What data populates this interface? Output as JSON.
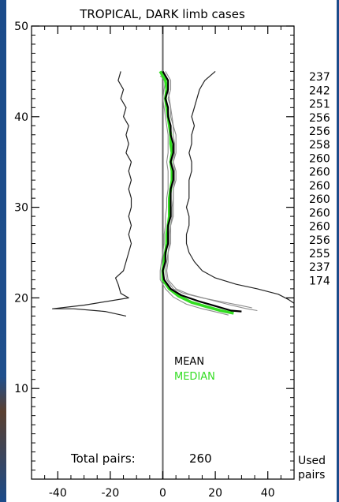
{
  "colors": {
    "frame": "#000000",
    "mean": "#000000",
    "median": "#33dd22",
    "spread": "#222222",
    "individual": "#8c8c8c",
    "zero_line": "#666666",
    "edge": "#1b4b8a"
  },
  "chart_data": {
    "type": "line",
    "title": "TROPICAL, DARK limb cases",
    "xlabel": "",
    "ylabel": "",
    "xlim": [
      -50,
      50
    ],
    "ylim": [
      0,
      50
    ],
    "x_ticks": [
      -40,
      -20,
      0,
      20,
      40
    ],
    "y_ticks": [
      10,
      20,
      30,
      40,
      50
    ],
    "grid": false,
    "legend_placement": "lower-center",
    "legend": {
      "mean_label": "MEAN",
      "median_label": "MEDIAN"
    },
    "total_pairs_label": "Total pairs:",
    "total_pairs_value": "260",
    "right_label_line1": "Used",
    "right_label_line2": "pairs",
    "used_pairs": [
      {
        "y": 44.5,
        "n": "237"
      },
      {
        "y": 43.0,
        "n": "242"
      },
      {
        "y": 41.5,
        "n": "251"
      },
      {
        "y": 40.0,
        "n": "256"
      },
      {
        "y": 38.5,
        "n": "256"
      },
      {
        "y": 37.0,
        "n": "258"
      },
      {
        "y": 35.5,
        "n": "260"
      },
      {
        "y": 34.0,
        "n": "260"
      },
      {
        "y": 32.5,
        "n": "260"
      },
      {
        "y": 31.0,
        "n": "260"
      },
      {
        "y": 29.5,
        "n": "260"
      },
      {
        "y": 28.0,
        "n": "260"
      },
      {
        "y": 26.5,
        "n": "256"
      },
      {
        "y": 25.0,
        "n": "255"
      },
      {
        "y": 23.5,
        "n": "237"
      },
      {
        "y": 22.0,
        "n": "174"
      }
    ],
    "series": [
      {
        "name": "MEAN",
        "role": "mean",
        "points": [
          [
            0,
            45
          ],
          [
            2,
            44
          ],
          [
            2,
            43
          ],
          [
            1,
            42
          ],
          [
            2,
            41
          ],
          [
            2,
            40
          ],
          [
            3,
            39
          ],
          [
            3,
            38
          ],
          [
            4,
            37
          ],
          [
            4,
            36
          ],
          [
            3,
            35
          ],
          [
            4,
            34
          ],
          [
            4,
            33
          ],
          [
            3,
            32
          ],
          [
            3,
            31
          ],
          [
            3,
            30
          ],
          [
            3,
            29
          ],
          [
            2,
            28
          ],
          [
            2,
            27
          ],
          [
            2,
            26
          ],
          [
            1,
            25
          ],
          [
            1,
            24
          ],
          [
            0,
            23
          ],
          [
            0.5,
            22
          ],
          [
            3,
            21
          ],
          [
            7,
            20.3
          ],
          [
            14,
            19.6
          ],
          [
            20,
            19.1
          ],
          [
            26,
            18.6
          ],
          [
            30,
            18.5
          ]
        ]
      },
      {
        "name": "MEDIAN",
        "role": "median",
        "points": [
          [
            -1,
            45
          ],
          [
            1,
            44
          ],
          [
            1.5,
            43
          ],
          [
            1,
            42
          ],
          [
            1.5,
            41
          ],
          [
            2,
            40
          ],
          [
            2.5,
            39
          ],
          [
            3,
            38
          ],
          [
            3,
            37
          ],
          [
            3.5,
            36
          ],
          [
            3,
            35
          ],
          [
            3.5,
            34
          ],
          [
            3.5,
            33
          ],
          [
            3,
            32
          ],
          [
            2.5,
            31
          ],
          [
            2.5,
            30
          ],
          [
            2.5,
            29
          ],
          [
            2,
            28
          ],
          [
            1.5,
            27
          ],
          [
            1.5,
            26
          ],
          [
            1,
            25
          ],
          [
            0.5,
            24
          ],
          [
            0,
            23
          ],
          [
            0,
            22
          ],
          [
            2.5,
            21
          ],
          [
            6,
            20.2
          ],
          [
            11,
            19.5
          ],
          [
            17,
            19.0
          ],
          [
            22,
            18.6
          ],
          [
            27,
            18.3
          ]
        ]
      },
      {
        "role": "spread",
        "points": [
          [
            -16,
            45
          ],
          [
            -17,
            44
          ],
          [
            -15,
            43
          ],
          [
            -16,
            42
          ],
          [
            -14,
            41
          ],
          [
            -15,
            40
          ],
          [
            -13,
            39
          ],
          [
            -14,
            38
          ],
          [
            -13,
            37
          ],
          [
            -14,
            36
          ],
          [
            -12,
            35
          ],
          [
            -13,
            34
          ],
          [
            -12,
            33
          ],
          [
            -13,
            32
          ],
          [
            -12,
            31
          ],
          [
            -12,
            30
          ],
          [
            -13,
            29
          ],
          [
            -12,
            28
          ],
          [
            -13,
            27
          ],
          [
            -12,
            26
          ],
          [
            -13,
            25
          ],
          [
            -14,
            24
          ],
          [
            -15,
            23
          ],
          [
            -18,
            22.2
          ],
          [
            -17,
            21.5
          ],
          [
            -16,
            20.5
          ],
          [
            -13,
            20.0
          ],
          [
            -30,
            19.2
          ],
          [
            -42,
            18.8
          ],
          [
            -34,
            18.8
          ],
          [
            -22,
            18.5
          ],
          [
            -14,
            18.0
          ]
        ]
      },
      {
        "role": "spread",
        "points": [
          [
            20,
            45
          ],
          [
            16,
            44
          ],
          [
            14,
            43
          ],
          [
            13,
            42
          ],
          [
            12,
            41
          ],
          [
            11,
            40
          ],
          [
            12,
            39
          ],
          [
            11,
            38
          ],
          [
            11,
            37
          ],
          [
            10,
            36
          ],
          [
            11,
            35
          ],
          [
            11,
            34
          ],
          [
            10,
            33
          ],
          [
            10,
            32
          ],
          [
            10,
            31
          ],
          [
            9,
            30
          ],
          [
            10,
            29
          ],
          [
            10,
            28
          ],
          [
            9,
            27
          ],
          [
            9,
            26
          ],
          [
            10,
            25
          ],
          [
            12,
            24
          ],
          [
            15,
            23
          ],
          [
            20,
            22.2
          ],
          [
            28,
            21.5
          ],
          [
            36,
            21.0
          ],
          [
            44,
            20.4
          ],
          [
            48,
            19.8
          ],
          [
            50,
            19.4
          ]
        ]
      },
      {
        "role": "individual",
        "points": [
          [
            1,
            45
          ],
          [
            3,
            44
          ],
          [
            3,
            43
          ],
          [
            2,
            42
          ],
          [
            3,
            41
          ],
          [
            3,
            40
          ],
          [
            4,
            39
          ],
          [
            5,
            38
          ],
          [
            5,
            37
          ],
          [
            5,
            36
          ],
          [
            4,
            35
          ],
          [
            5,
            34
          ],
          [
            5,
            33
          ],
          [
            4,
            32
          ],
          [
            4,
            31
          ],
          [
            4,
            30
          ],
          [
            4,
            29
          ],
          [
            3,
            28
          ],
          [
            3,
            27
          ],
          [
            3,
            26
          ],
          [
            2,
            25
          ],
          [
            2,
            24
          ],
          [
            1.5,
            23
          ],
          [
            2,
            22
          ],
          [
            5,
            21
          ],
          [
            10,
            20.4
          ],
          [
            18,
            19.8
          ],
          [
            26,
            19.2
          ],
          [
            32,
            18.8
          ],
          [
            36,
            18.6
          ]
        ]
      },
      {
        "role": "individual",
        "points": [
          [
            -1,
            44.5
          ],
          [
            1,
            44
          ],
          [
            0.5,
            43
          ],
          [
            0,
            42
          ],
          [
            0.5,
            41
          ],
          [
            1,
            40
          ],
          [
            1.5,
            39
          ],
          [
            2,
            38
          ],
          [
            2,
            37
          ],
          [
            2,
            36
          ],
          [
            1.5,
            35
          ],
          [
            2,
            34
          ],
          [
            2,
            33
          ],
          [
            2,
            32
          ],
          [
            1.5,
            31
          ],
          [
            1.5,
            30
          ],
          [
            1,
            29
          ],
          [
            1,
            28
          ],
          [
            0.5,
            27
          ],
          [
            0.5,
            26
          ],
          [
            0,
            25
          ],
          [
            -0.5,
            24
          ],
          [
            -1,
            23
          ],
          [
            -1,
            22
          ],
          [
            1,
            21
          ],
          [
            4,
            20.1
          ],
          [
            9,
            19.3
          ],
          [
            15,
            18.8
          ],
          [
            21,
            18.4
          ],
          [
            25,
            18.1
          ]
        ]
      },
      {
        "role": "individual",
        "points": [
          [
            2,
            43
          ],
          [
            2.5,
            42
          ],
          [
            3,
            41
          ],
          [
            3.5,
            40
          ],
          [
            4,
            39
          ],
          [
            4,
            38
          ],
          [
            4.5,
            37
          ],
          [
            4.5,
            36
          ],
          [
            4,
            35
          ],
          [
            4.5,
            34
          ],
          [
            4.5,
            33
          ],
          [
            4,
            32
          ],
          [
            4,
            31
          ],
          [
            3.5,
            30
          ],
          [
            3.5,
            29
          ],
          [
            3,
            28
          ],
          [
            2.5,
            27
          ],
          [
            2.5,
            26
          ],
          [
            2,
            25
          ],
          [
            1.5,
            24
          ],
          [
            1,
            23
          ],
          [
            1.5,
            22
          ],
          [
            4,
            21
          ],
          [
            8,
            20.5
          ],
          [
            15,
            20.0
          ],
          [
            22,
            19.6
          ],
          [
            29,
            19.2
          ],
          [
            34,
            18.9
          ]
        ]
      }
    ]
  }
}
